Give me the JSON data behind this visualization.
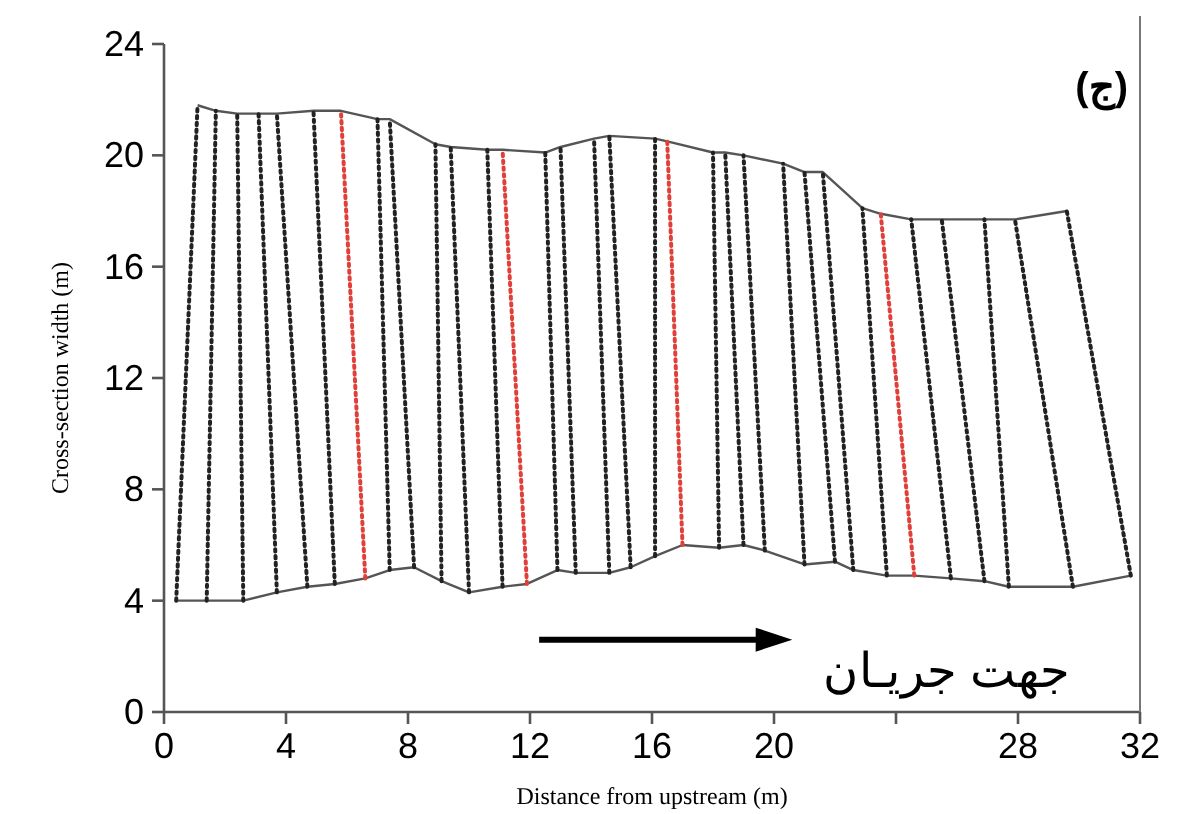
{
  "chart_data": {
    "type": "line",
    "xlabel": "Distance from upstream (m)",
    "ylabel": "Cross-section width (m)",
    "xlim": [
      0,
      32
    ],
    "xticks": [
      0,
      4,
      8,
      12,
      16,
      20,
      {
        "value": 24,
        "label": null
      },
      28,
      32
    ],
    "ylim": [
      0,
      24
    ],
    "yticks": [
      0,
      4,
      8,
      12,
      16,
      20,
      24
    ],
    "grid": false,
    "annotations": [
      "جهت جریـان",
      "(ج)"
    ],
    "series": [
      {
        "color": "#555555",
        "line_style": "solid",
        "x": [
          1.1,
          1.7,
          2.4,
          3.1,
          3.7,
          4.9,
          5.8,
          7.0,
          7.4,
          8.9,
          9.4,
          10.6,
          11.1,
          12.5,
          13.0,
          14.1,
          14.6,
          16.1,
          16.5,
          18.0,
          18.4,
          19.0,
          20.3,
          21.0,
          21.6,
          22.9,
          23.5,
          24.5,
          25.5,
          26.9,
          27.9,
          29.6
        ],
        "values": [
          21.8,
          21.6,
          21.5,
          21.5,
          21.5,
          21.6,
          21.6,
          21.3,
          21.3,
          20.4,
          20.3,
          20.2,
          20.2,
          20.1,
          20.3,
          20.6,
          20.7,
          20.6,
          20.5,
          20.1,
          20.1,
          20.0,
          19.7,
          19.4,
          19.4,
          18.1,
          17.9,
          17.7,
          17.7,
          17.7,
          17.7,
          18.0
        ]
      },
      {
        "color": "#555555",
        "line_style": "solid",
        "x": [
          0.4,
          1.4,
          2.6,
          3.7,
          4.7,
          5.6,
          6.6,
          7.4,
          8.2,
          9.1,
          10.0,
          11.1,
          11.9,
          12.9,
          13.5,
          14.6,
          15.3,
          16.1,
          17.0,
          18.2,
          19.0,
          19.7,
          21.0,
          22.0,
          22.6,
          23.7,
          24.6,
          25.8,
          26.9,
          27.7,
          29.8,
          31.7
        ],
        "values": [
          4.0,
          4.0,
          4.0,
          4.3,
          4.5,
          4.6,
          4.8,
          5.1,
          5.2,
          4.7,
          4.3,
          4.5,
          4.6,
          5.1,
          5.0,
          5.0,
          5.2,
          5.6,
          6.0,
          5.9,
          6.0,
          5.8,
          5.3,
          5.4,
          5.1,
          4.9,
          4.9,
          4.8,
          4.7,
          4.5,
          4.5,
          4.9
        ]
      },
      {
        "color": "#222222",
        "line_style": "dotted",
        "x": [
          0.4,
          1.1
        ],
        "values": [
          4.0,
          21.8
        ]
      },
      {
        "color": "#222222",
        "line_style": "dotted",
        "x": [
          1.4,
          1.7
        ],
        "values": [
          4.0,
          21.6
        ]
      },
      {
        "color": "#222222",
        "line_style": "dotted",
        "x": [
          2.6,
          2.4
        ],
        "values": [
          4.0,
          21.5
        ]
      },
      {
        "color": "#222222",
        "line_style": "dotted",
        "x": [
          3.7,
          3.1
        ],
        "values": [
          4.3,
          21.5
        ]
      },
      {
        "color": "#222222",
        "line_style": "dotted",
        "x": [
          4.7,
          3.7
        ],
        "values": [
          4.5,
          21.5
        ]
      },
      {
        "color": "#222222",
        "line_style": "dotted",
        "x": [
          5.6,
          4.9
        ],
        "values": [
          4.6,
          21.6
        ]
      },
      {
        "color": "#e0403a",
        "line_style": "dotted",
        "x": [
          6.6,
          5.8
        ],
        "values": [
          4.8,
          21.6
        ]
      },
      {
        "color": "#222222",
        "line_style": "dotted",
        "x": [
          7.4,
          7.0
        ],
        "values": [
          5.1,
          21.3
        ]
      },
      {
        "color": "#222222",
        "line_style": "dotted",
        "x": [
          8.2,
          7.4
        ],
        "values": [
          5.2,
          21.3
        ]
      },
      {
        "color": "#222222",
        "line_style": "dotted",
        "x": [
          9.1,
          8.9
        ],
        "values": [
          4.7,
          20.4
        ]
      },
      {
        "color": "#222222",
        "line_style": "dotted",
        "x": [
          10.0,
          9.4
        ],
        "values": [
          4.3,
          20.3
        ]
      },
      {
        "color": "#222222",
        "line_style": "dotted",
        "x": [
          11.1,
          10.6
        ],
        "values": [
          4.5,
          20.2
        ]
      },
      {
        "color": "#e0403a",
        "line_style": "dotted",
        "x": [
          11.9,
          11.1
        ],
        "values": [
          4.6,
          20.2
        ]
      },
      {
        "color": "#222222",
        "line_style": "dotted",
        "x": [
          12.9,
          12.5
        ],
        "values": [
          5.1,
          20.1
        ]
      },
      {
        "color": "#222222",
        "line_style": "dotted",
        "x": [
          13.5,
          13.0
        ],
        "values": [
          5.0,
          20.3
        ]
      },
      {
        "color": "#222222",
        "line_style": "dotted",
        "x": [
          14.6,
          14.1
        ],
        "values": [
          5.0,
          20.6
        ]
      },
      {
        "color": "#222222",
        "line_style": "dotted",
        "x": [
          15.3,
          14.6
        ],
        "values": [
          5.2,
          20.7
        ]
      },
      {
        "color": "#222222",
        "line_style": "dotted",
        "x": [
          16.1,
          16.1
        ],
        "values": [
          5.6,
          20.6
        ]
      },
      {
        "color": "#e0403a",
        "line_style": "dotted",
        "x": [
          17.0,
          16.5
        ],
        "values": [
          6.0,
          20.5
        ]
      },
      {
        "color": "#222222",
        "line_style": "dotted",
        "x": [
          18.2,
          18.0
        ],
        "values": [
          5.9,
          20.1
        ]
      },
      {
        "color": "#222222",
        "line_style": "dotted",
        "x": [
          19.0,
          18.4
        ],
        "values": [
          6.0,
          20.1
        ]
      },
      {
        "color": "#222222",
        "line_style": "dotted",
        "x": [
          19.7,
          19.0
        ],
        "values": [
          5.8,
          20.0
        ]
      },
      {
        "color": "#222222",
        "line_style": "dotted",
        "x": [
          21.0,
          20.3
        ],
        "values": [
          5.3,
          19.7
        ]
      },
      {
        "color": "#222222",
        "line_style": "dotted",
        "x": [
          22.0,
          21.0
        ],
        "values": [
          5.4,
          19.4
        ]
      },
      {
        "color": "#222222",
        "line_style": "dotted",
        "x": [
          22.6,
          21.6
        ],
        "values": [
          5.1,
          19.4
        ]
      },
      {
        "color": "#222222",
        "line_style": "dotted",
        "x": [
          23.7,
          22.9
        ],
        "values": [
          4.9,
          18.1
        ]
      },
      {
        "color": "#e0403a",
        "line_style": "dotted",
        "x": [
          24.6,
          23.5
        ],
        "values": [
          4.9,
          17.9
        ]
      },
      {
        "color": "#222222",
        "line_style": "dotted",
        "x": [
          25.8,
          24.5
        ],
        "values": [
          4.8,
          17.7
        ]
      },
      {
        "color": "#222222",
        "line_style": "dotted",
        "x": [
          26.9,
          25.5
        ],
        "values": [
          4.7,
          17.7
        ]
      },
      {
        "color": "#222222",
        "line_style": "dotted",
        "x": [
          27.7,
          26.9
        ],
        "values": [
          4.5,
          17.7
        ]
      },
      {
        "color": "#222222",
        "line_style": "dotted",
        "x": [
          29.8,
          27.9
        ],
        "values": [
          4.5,
          17.7
        ]
      },
      {
        "color": "#222222",
        "line_style": "dotted",
        "x": [
          31.7,
          29.6
        ],
        "values": [
          4.9,
          18.0
        ]
      }
    ]
  }
}
